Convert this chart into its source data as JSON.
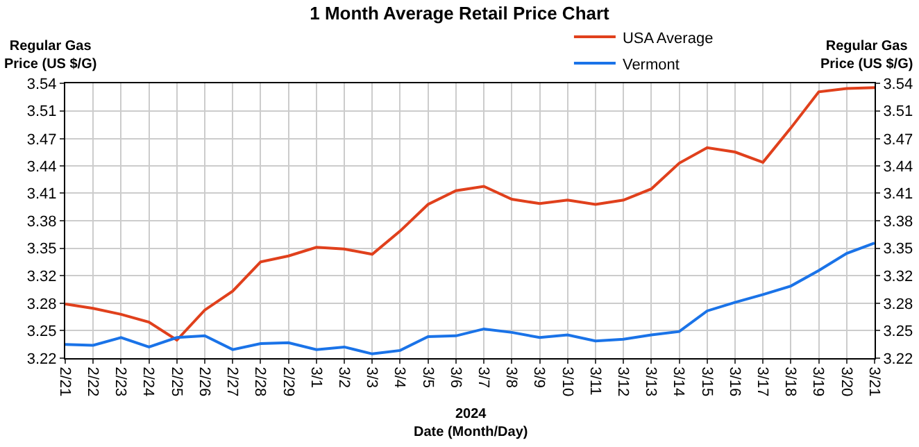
{
  "chart_data": {
    "type": "line",
    "title": "1 Month Average Retail Price Chart",
    "xlabel": "2024\nDate (Month/Day)",
    "ylabel": "Regular Gas\nPrice (US $/G)",
    "y2label": "Regular Gas\nPrice (US $/G)",
    "categories": [
      "2/21",
      "2/22",
      "2/23",
      "2/24",
      "2/25",
      "2/26",
      "2/27",
      "2/28",
      "2/29",
      "3/1",
      "3/2",
      "3/3",
      "3/4",
      "3/5",
      "3/6",
      "3/7",
      "3/8",
      "3/9",
      "3/10",
      "3/11",
      "3/12",
      "3/13",
      "3/14",
      "3/15",
      "3/16",
      "3/17",
      "3/18",
      "3/19",
      "3/20",
      "3/21"
    ],
    "series": [
      {
        "name": "USA Average",
        "color": "#e0401c",
        "values": [
          3.283,
          3.278,
          3.271,
          3.262,
          3.241,
          3.276,
          3.298,
          3.332,
          3.339,
          3.349,
          3.347,
          3.341,
          3.368,
          3.399,
          3.415,
          3.42,
          3.405,
          3.4,
          3.404,
          3.399,
          3.404,
          3.417,
          3.447,
          3.465,
          3.46,
          3.448,
          3.488,
          3.53,
          3.534,
          3.535
        ]
      },
      {
        "name": "Vermont",
        "color": "#1a73e8",
        "values": [
          3.236,
          3.235,
          3.244,
          3.233,
          3.244,
          3.246,
          3.23,
          3.237,
          3.238,
          3.23,
          3.233,
          3.225,
          3.229,
          3.245,
          3.246,
          3.254,
          3.25,
          3.244,
          3.247,
          3.24,
          3.242,
          3.247,
          3.251,
          3.275,
          3.285,
          3.294,
          3.304,
          3.322,
          3.342,
          3.354
        ]
      }
    ],
    "ylim": [
      3.22,
      3.54
    ],
    "yticks": [
      {
        "value": 3.22,
        "label": "3.22"
      },
      {
        "value": 3.252,
        "label": "3.25"
      },
      {
        "value": 3.284,
        "label": "3.28"
      },
      {
        "value": 3.316,
        "label": "3.32"
      },
      {
        "value": 3.348,
        "label": "3.35"
      },
      {
        "value": 3.38,
        "label": "3.38"
      },
      {
        "value": 3.412,
        "label": "3.41"
      },
      {
        "value": 3.444,
        "label": "3.44"
      },
      {
        "value": 3.475,
        "label": "3.47"
      },
      {
        "value": 3.508,
        "label": "3.51"
      },
      {
        "value": 3.54,
        "label": "3.54"
      }
    ],
    "y2lim": [
      3.22,
      3.54
    ],
    "y2ticks": [
      {
        "value": 3.22,
        "label": "3.22"
      },
      {
        "value": 3.252,
        "label": "3.25"
      },
      {
        "value": 3.284,
        "label": "3.28"
      },
      {
        "value": 3.316,
        "label": "3.32"
      },
      {
        "value": 3.348,
        "label": "3.35"
      },
      {
        "value": 3.38,
        "label": "3.38"
      },
      {
        "value": 3.412,
        "label": "3.41"
      },
      {
        "value": 3.444,
        "label": "3.44"
      },
      {
        "value": 3.475,
        "label": "3.47"
      },
      {
        "value": 3.508,
        "label": "3.51"
      },
      {
        "value": 3.54,
        "label": "3.54"
      }
    ],
    "grid": true,
    "legend": "top",
    "marker": "none",
    "line_style": "solid"
  }
}
